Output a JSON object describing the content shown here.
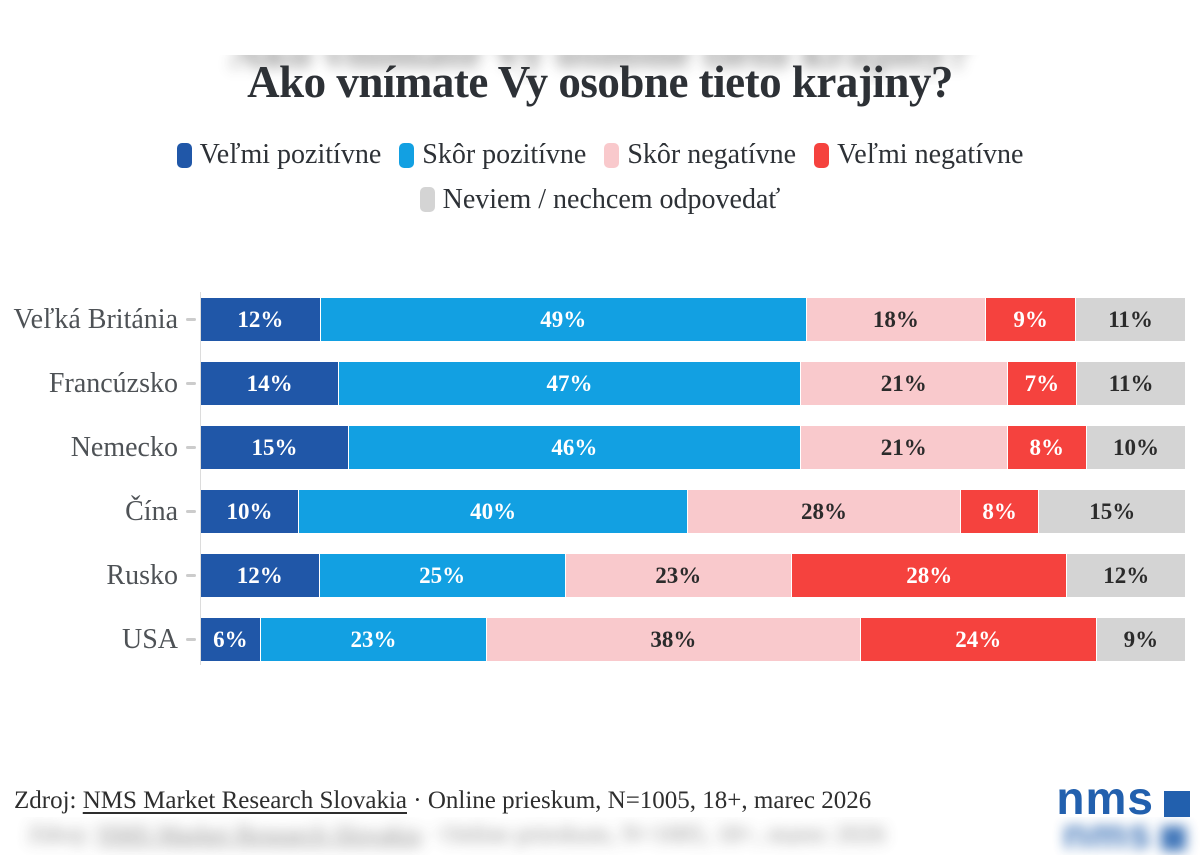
{
  "page": {
    "title": "Ako vnímate Vy osobne tieto krajiny?"
  },
  "legend": {
    "items": [
      {
        "label": "Veľmi pozitívne",
        "color": "#2057a8"
      },
      {
        "label": "Skôr pozitívne",
        "color": "#12a0e2"
      },
      {
        "label": "Skôr negatívne",
        "color": "#f9c9cc"
      },
      {
        "label": "Veľmi negatívne",
        "color": "#f5423e"
      },
      {
        "label": "Neviem / nechcem odpovedať",
        "color": "#d4d4d4"
      }
    ]
  },
  "chart_data": {
    "type": "bar",
    "orientation": "horizontal",
    "stacked": true,
    "value_suffix": "%",
    "title": "Ako vnímate Vy osobne tieto krajiny?",
    "categories": [
      "Veľká Británia",
      "Francúzsko",
      "Nemecko",
      "Čína",
      "Rusko",
      "USA"
    ],
    "series": [
      {
        "name": "Veľmi pozitívne",
        "color": "#2057a8",
        "label_color": "#ffffff",
        "values": [
          12,
          14,
          15,
          10,
          12,
          6
        ]
      },
      {
        "name": "Skôr pozitívne",
        "color": "#12a0e2",
        "label_color": "#ffffff",
        "values": [
          49,
          47,
          46,
          40,
          25,
          23
        ]
      },
      {
        "name": "Skôr negatívne",
        "color": "#f9c9cc",
        "label_color": "#2b2b2b",
        "values": [
          18,
          21,
          21,
          28,
          23,
          38
        ]
      },
      {
        "name": "Veľmi negatívne",
        "color": "#f5423e",
        "label_color": "#ffffff",
        "values": [
          9,
          7,
          8,
          8,
          28,
          24
        ]
      },
      {
        "name": "Neviem / nechcem odpovedať",
        "color": "#d4d4d4",
        "label_color": "#2b2b2b",
        "values": [
          11,
          11,
          10,
          15,
          12,
          9
        ]
      }
    ],
    "legend_position": "top",
    "grid": false
  },
  "footer": {
    "prefix": "Zdroj: ",
    "link": "NMS Market Research Slovakia",
    "separator": " · ",
    "suffix": "Online prieskum, N=1005, 18+, marec 2026"
  },
  "logo": {
    "text": "nms",
    "color": "#2260ae"
  }
}
